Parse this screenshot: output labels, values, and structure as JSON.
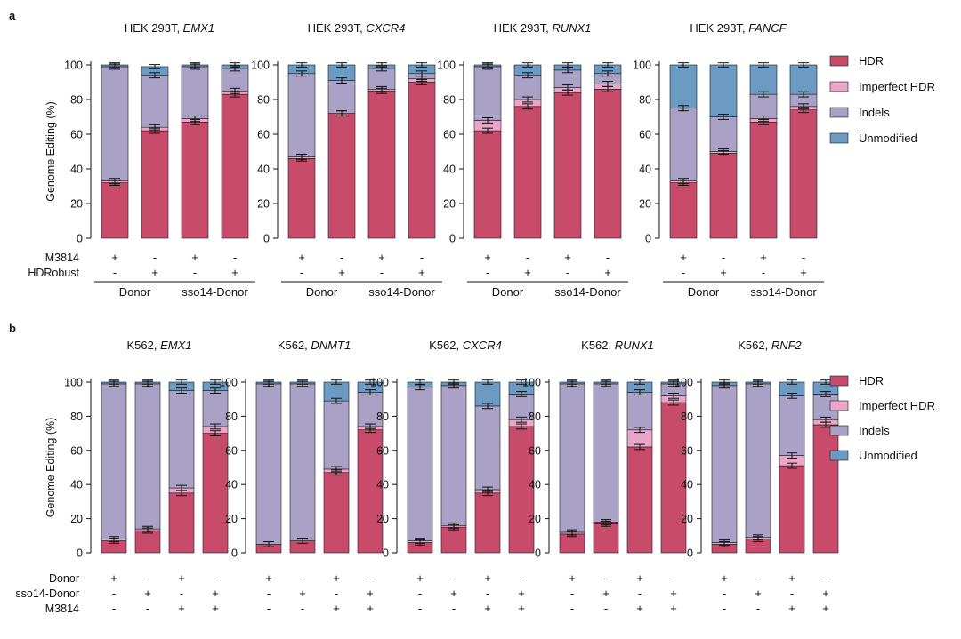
{
  "panel_labels": [
    "a",
    "b"
  ],
  "colors": {
    "HDR": "#c94b6c",
    "Imperfect HDR": "#e9a6c9",
    "Indels": "#a9a1c6",
    "Unmodified": "#6b9ac3",
    "axis": "#111111",
    "errorbar": "#111111"
  },
  "legend": [
    "HDR",
    "Imperfect HDR",
    "Indels",
    "Unmodified"
  ],
  "ylabel": "Genome Editing (%)",
  "panel_a": {
    "row_labels": [
      "M3814",
      "HDRobust"
    ],
    "row_signs": [
      [
        "+",
        "-",
        "+",
        "-"
      ],
      [
        "-",
        "+",
        "-",
        "+"
      ]
    ],
    "group_labels": [
      "Donor",
      "sso14-Donor"
    ]
  },
  "panel_b": {
    "row_labels": [
      "Donor",
      "sso14-Donor",
      "M3814"
    ],
    "row_signs": [
      [
        "+",
        "-",
        "+",
        "-"
      ],
      [
        "-",
        "+",
        "-",
        "+"
      ],
      [
        "-",
        "-",
        "+",
        "+"
      ]
    ]
  },
  "chart_data": [
    {
      "type": "bar",
      "stacked": true,
      "panel": "a",
      "title": "HEK 293T, ",
      "title_gene": "EMX1",
      "ylabel": "Genome Editing (%)",
      "ylim": [
        0,
        100
      ],
      "yticks": [
        0,
        20,
        40,
        60,
        80,
        100
      ],
      "series": [
        {
          "name": "HDR",
          "values": [
            32,
            62,
            67,
            83
          ]
        },
        {
          "name": "Imperfect HDR",
          "values": [
            1,
            2,
            2,
            2
          ]
        },
        {
          "name": "Indels",
          "values": [
            66,
            30,
            30,
            13
          ]
        },
        {
          "name": "Unmodified",
          "values": [
            1,
            5,
            1,
            2
          ]
        }
      ]
    },
    {
      "type": "bar",
      "stacked": true,
      "panel": "a",
      "title": "HEK 293T, ",
      "title_gene": "CXCR4",
      "ylim": [
        0,
        100
      ],
      "yticks": [
        0,
        20,
        40,
        60,
        80,
        100
      ],
      "series": [
        {
          "name": "HDR",
          "values": [
            46,
            72,
            85,
            90
          ]
        },
        {
          "name": "Imperfect HDR",
          "values": [
            1,
            0,
            1,
            2
          ]
        },
        {
          "name": "Indels",
          "values": [
            48,
            19,
            12,
            3
          ]
        },
        {
          "name": "Unmodified",
          "values": [
            5,
            9,
            2,
            5
          ]
        }
      ]
    },
    {
      "type": "bar",
      "stacked": true,
      "panel": "a",
      "title": "HEK 293T, ",
      "title_gene": "RUNX1",
      "ylim": [
        0,
        100
      ],
      "yticks": [
        0,
        20,
        40,
        60,
        80,
        100
      ],
      "series": [
        {
          "name": "HDR",
          "values": [
            62,
            76,
            84,
            86
          ]
        },
        {
          "name": "Imperfect HDR",
          "values": [
            6,
            4,
            3,
            3
          ]
        },
        {
          "name": "Indels",
          "values": [
            31,
            14,
            10,
            6
          ]
        },
        {
          "name": "Unmodified",
          "values": [
            1,
            6,
            3,
            5
          ]
        }
      ]
    },
    {
      "type": "bar",
      "stacked": true,
      "panel": "a",
      "title": "HEK 293T, ",
      "title_gene": "FANCF",
      "ylim": [
        0,
        100
      ],
      "yticks": [
        0,
        20,
        40,
        60,
        80,
        100
      ],
      "series": [
        {
          "name": "HDR",
          "values": [
            32,
            49,
            67,
            74
          ]
        },
        {
          "name": "Imperfect HDR",
          "values": [
            1,
            1,
            2,
            2
          ]
        },
        {
          "name": "Indels",
          "values": [
            42,
            20,
            14,
            7
          ]
        },
        {
          "name": "Unmodified",
          "values": [
            25,
            30,
            17,
            17
          ]
        }
      ]
    },
    {
      "type": "bar",
      "stacked": true,
      "panel": "b",
      "title": "K562, ",
      "title_gene": "EMX1",
      "ylabel": "Genome Editing (%)",
      "ylim": [
        0,
        100
      ],
      "yticks": [
        0,
        20,
        40,
        60,
        80,
        100
      ],
      "series": [
        {
          "name": "HDR",
          "values": [
            7,
            13,
            35,
            70
          ]
        },
        {
          "name": "Imperfect HDR",
          "values": [
            1,
            1,
            3,
            4
          ]
        },
        {
          "name": "Indels",
          "values": [
            91,
            85,
            57,
            21
          ]
        },
        {
          "name": "Unmodified",
          "values": [
            1,
            1,
            5,
            5
          ]
        }
      ]
    },
    {
      "type": "bar",
      "stacked": true,
      "panel": "b",
      "title": "K562, ",
      "title_gene": "DNMT1",
      "ylim": [
        0,
        100
      ],
      "yticks": [
        0,
        20,
        40,
        60,
        80,
        100
      ],
      "series": [
        {
          "name": "HDR",
          "values": [
            5,
            7,
            47,
            72
          ]
        },
        {
          "name": "Imperfect HDR",
          "values": [
            0,
            0,
            2,
            2
          ]
        },
        {
          "name": "Indels",
          "values": [
            94,
            92,
            40,
            20
          ]
        },
        {
          "name": "Unmodified",
          "values": [
            1,
            1,
            11,
            6
          ]
        }
      ]
    },
    {
      "type": "bar",
      "stacked": true,
      "panel": "b",
      "title": "K562, ",
      "title_gene": "CXCR4",
      "ylim": [
        0,
        100
      ],
      "yticks": [
        0,
        20,
        40,
        60,
        80,
        100
      ],
      "series": [
        {
          "name": "HDR",
          "values": [
            6,
            15,
            35,
            74
          ]
        },
        {
          "name": "Imperfect HDR",
          "values": [
            1,
            1,
            2,
            4
          ]
        },
        {
          "name": "Indels",
          "values": [
            90,
            82,
            49,
            15
          ]
        },
        {
          "name": "Unmodified",
          "values": [
            3,
            2,
            14,
            7
          ]
        }
      ]
    },
    {
      "type": "bar",
      "stacked": true,
      "panel": "b",
      "title": "K562, ",
      "title_gene": "RUNX1",
      "ylim": [
        0,
        100
      ],
      "yticks": [
        0,
        20,
        40,
        60,
        80,
        100
      ],
      "series": [
        {
          "name": "HDR",
          "values": [
            11,
            17,
            62,
            88
          ]
        },
        {
          "name": "Imperfect HDR",
          "values": [
            1,
            1,
            10,
            4
          ]
        },
        {
          "name": "Indels",
          "values": [
            87,
            81,
            22,
            7
          ]
        },
        {
          "name": "Unmodified",
          "values": [
            1,
            1,
            6,
            1
          ]
        }
      ]
    },
    {
      "type": "bar",
      "stacked": true,
      "panel": "b",
      "title": "K562, ",
      "title_gene": "RNF2",
      "ylim": [
        0,
        100
      ],
      "yticks": [
        0,
        20,
        40,
        60,
        80,
        100
      ],
      "series": [
        {
          "name": "HDR",
          "values": [
            5,
            8,
            51,
            75
          ]
        },
        {
          "name": "Imperfect HDR",
          "values": [
            1,
            1,
            6,
            3
          ]
        },
        {
          "name": "Indels",
          "values": [
            92,
            90,
            35,
            15
          ]
        },
        {
          "name": "Unmodified",
          "values": [
            2,
            1,
            8,
            7
          ]
        }
      ]
    }
  ]
}
